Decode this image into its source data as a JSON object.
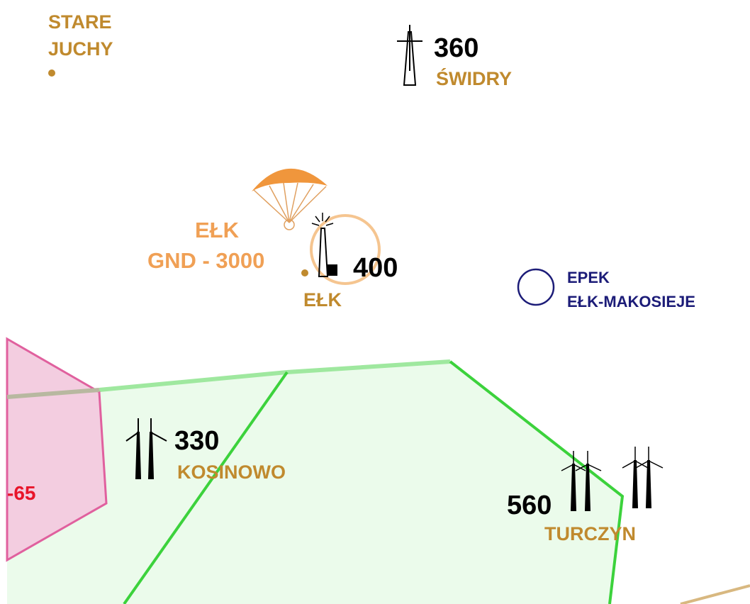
{
  "places": [
    {
      "name_lines": [
        "STARE",
        "JUCHY"
      ]
    },
    {
      "elevation": "360",
      "name": "ŚWIDRY"
    },
    {
      "zone_lines": [
        "EŁK",
        "GND - 3000"
      ]
    },
    {
      "elevation": "400",
      "name": "EŁK"
    },
    {
      "code": "EPEK",
      "name": "EŁK-MAKOSIEJE"
    },
    {
      "zone_label": "-65"
    },
    {
      "elevation": "330",
      "name": "KOSINOWO"
    },
    {
      "elevation": "560",
      "name": "TURCZYN"
    }
  ]
}
